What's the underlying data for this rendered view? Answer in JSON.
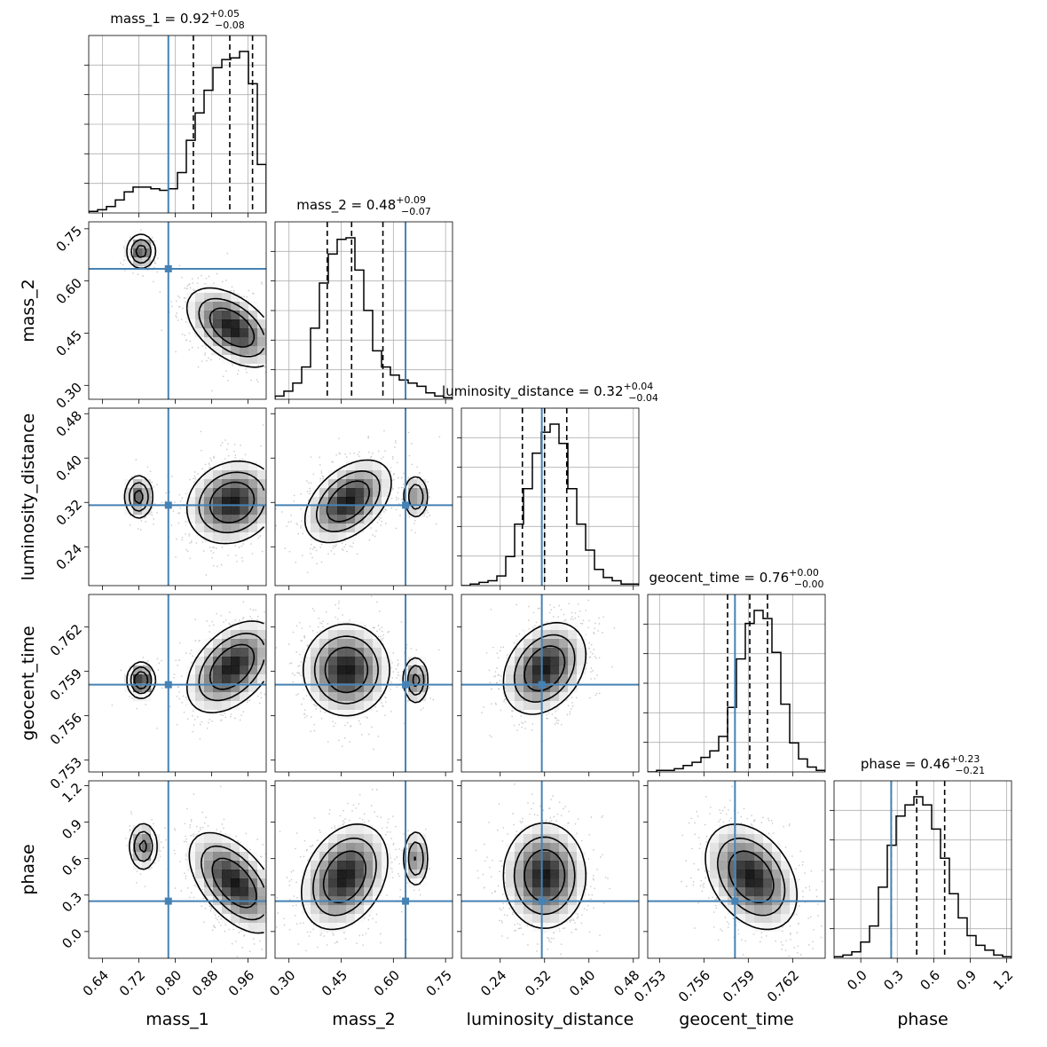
{
  "chart_data": {
    "type": "corner",
    "parameters": [
      "mass_1",
      "mass_2",
      "luminosity_distance",
      "geocent_time",
      "phase"
    ],
    "titles": [
      {
        "name": "mass_1",
        "median": "0.92",
        "plus": "+0.05",
        "minus": "−0.08"
      },
      {
        "name": "mass_2",
        "median": "0.48",
        "plus": "+0.09",
        "minus": "−0.07"
      },
      {
        "name": "luminosity_distance",
        "median": "0.32",
        "plus": "+0.04",
        "minus": "−0.04"
      },
      {
        "name": "geocent_time",
        "median": "0.76",
        "plus": "+0.00",
        "minus": "−0.00"
      },
      {
        "name": "phase",
        "median": "0.46",
        "plus": "+0.23",
        "minus": "−0.21"
      }
    ],
    "ranges": [
      [
        0.61,
        1.0
      ],
      [
        0.26,
        0.77
      ],
      [
        0.17,
        0.49
      ],
      [
        0.7522,
        0.7642
      ],
      [
        -0.22,
        1.24
      ]
    ],
    "ticks": [
      [
        "0.64",
        "0.72",
        "0.80",
        "0.88",
        "0.96"
      ],
      [
        "0.30",
        "0.45",
        "0.60",
        "0.75"
      ],
      [
        "0.24",
        "0.32",
        "0.40",
        "0.48"
      ],
      [
        "0.753",
        "0.756",
        "0.759",
        "0.762"
      ],
      [
        "0.0",
        "0.3",
        "0.6",
        "0.9",
        "1.2"
      ]
    ],
    "truths": [
      0.785,
      0.635,
      0.315,
      0.7581,
      0.25
    ],
    "quantiles": [
      [
        0.84,
        0.92,
        0.97
      ],
      [
        0.41,
        0.48,
        0.57
      ],
      [
        0.28,
        0.32,
        0.36
      ],
      [
        0.7576,
        0.7591,
        0.7603
      ],
      [
        0.25,
        0.46,
        0.69
      ]
    ],
    "histograms": [
      [
        0.01,
        0.02,
        0.04,
        0.08,
        0.13,
        0.16,
        0.16,
        0.15,
        0.14,
        0.15,
        0.25,
        0.45,
        0.62,
        0.76,
        0.9,
        0.95,
        0.96,
        1.0,
        0.8,
        0.3
      ],
      [
        0.02,
        0.05,
        0.1,
        0.2,
        0.44,
        0.72,
        0.9,
        0.99,
        1.0,
        0.8,
        0.55,
        0.3,
        0.2,
        0.15,
        0.12,
        0.1,
        0.08,
        0.04,
        0.02,
        0.01
      ],
      [
        0.0,
        0.01,
        0.02,
        0.03,
        0.06,
        0.18,
        0.38,
        0.6,
        0.82,
        0.95,
        1.0,
        0.88,
        0.6,
        0.38,
        0.22,
        0.1,
        0.05,
        0.03,
        0.01,
        0.01
      ],
      [
        0.0,
        0.01,
        0.01,
        0.02,
        0.04,
        0.06,
        0.09,
        0.13,
        0.22,
        0.4,
        0.7,
        0.92,
        1.0,
        0.95,
        0.74,
        0.42,
        0.18,
        0.08,
        0.03,
        0.01
      ],
      [
        0.01,
        0.02,
        0.04,
        0.1,
        0.2,
        0.44,
        0.7,
        0.88,
        0.95,
        1.0,
        0.95,
        0.8,
        0.62,
        0.4,
        0.25,
        0.14,
        0.08,
        0.05,
        0.02,
        0.01
      ]
    ],
    "modes": [
      [
        {
          "x": 0.925,
          "y": 0.466,
          "sx": 0.048,
          "sy": 0.055,
          "rho": -0.5,
          "w": 0.88
        },
        {
          "x": 0.725,
          "y": 0.685,
          "sx": 0.016,
          "sy": 0.025,
          "rho": 0.0,
          "w": 0.12
        }
      ],
      [
        {
          "x": 0.925,
          "y": 0.32,
          "sx": 0.048,
          "sy": 0.036,
          "rho": 0.15,
          "w": 0.88
        },
        {
          "x": 0.72,
          "y": 0.33,
          "sx": 0.016,
          "sy": 0.02,
          "rho": 0.0,
          "w": 0.12
        }
      ],
      [
        {
          "x": 0.47,
          "y": 0.322,
          "sx": 0.06,
          "sy": 0.036,
          "rho": 0.45,
          "w": 0.9
        },
        {
          "x": 0.665,
          "y": 0.33,
          "sx": 0.018,
          "sy": 0.02,
          "rho": 0.0,
          "w": 0.1
        }
      ],
      [
        {
          "x": 0.925,
          "y": 0.7593,
          "sx": 0.048,
          "sy": 0.0015,
          "rho": 0.45,
          "w": 0.88
        },
        {
          "x": 0.725,
          "y": 0.7584,
          "sx": 0.015,
          "sy": 0.0006,
          "rho": 0.0,
          "w": 0.12
        }
      ],
      [
        {
          "x": 0.465,
          "y": 0.7591,
          "sx": 0.06,
          "sy": 0.0015,
          "rho": 0.0,
          "w": 0.9
        },
        {
          "x": 0.665,
          "y": 0.7584,
          "sx": 0.018,
          "sy": 0.0008,
          "rho": 0.0,
          "w": 0.1
        }
      ],
      [
        {
          "x": 0.32,
          "y": 0.7592,
          "sx": 0.036,
          "sy": 0.0015,
          "rho": 0.3,
          "w": 1.0
        }
      ],
      [
        {
          "x": 0.93,
          "y": 0.4,
          "sx": 0.048,
          "sy": 0.2,
          "rho": -0.55,
          "w": 0.88
        },
        {
          "x": 0.73,
          "y": 0.7,
          "sx": 0.016,
          "sy": 0.1,
          "rho": 0.0,
          "w": 0.12
        }
      ],
      [
        {
          "x": 0.46,
          "y": 0.45,
          "sx": 0.06,
          "sy": 0.21,
          "rho": 0.3,
          "w": 0.9
        },
        {
          "x": 0.665,
          "y": 0.6,
          "sx": 0.018,
          "sy": 0.12,
          "rho": 0.0,
          "w": 0.1
        }
      ],
      [
        {
          "x": 0.32,
          "y": 0.46,
          "sx": 0.036,
          "sy": 0.21,
          "rho": 0.0,
          "w": 1.0
        }
      ],
      [
        {
          "x": 0.7592,
          "y": 0.45,
          "sx": 0.0015,
          "sy": 0.21,
          "rho": -0.35,
          "w": 1.0
        }
      ]
    ]
  }
}
